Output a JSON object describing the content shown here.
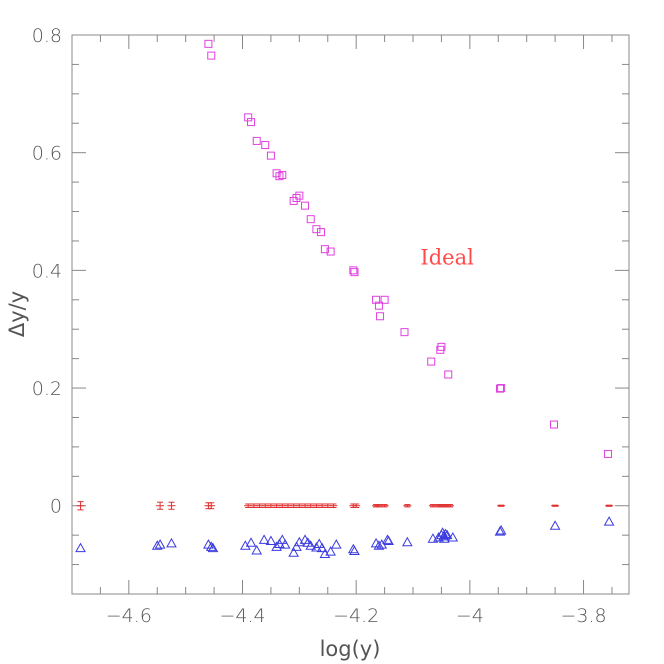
{
  "chart_data": {
    "type": "scatter",
    "title": "",
    "xlabel": "log(y)",
    "ylabel": "Δy/y",
    "xlim": [
      -4.7,
      -3.72
    ],
    "ylim": [
      -0.15,
      0.8
    ],
    "x_ticks": [
      -4.6,
      -4.4,
      -4.2,
      -4,
      -3.8
    ],
    "x_tick_labels": [
      "−4.6",
      "−4.4",
      "−4.2",
      "−4",
      "−3.8"
    ],
    "y_ticks": [
      0,
      0.2,
      0.4,
      0.6,
      0.8
    ],
    "y_tick_labels": [
      "0",
      "0.2",
      "0.4",
      "0.6",
      "0.8"
    ],
    "grid": false,
    "annotations": [
      {
        "text": "Ideal",
        "x": -4.04,
        "y": 0.41,
        "color": "#ff4a4a"
      }
    ],
    "series": [
      {
        "marker": "square",
        "color": "#e040e0",
        "points": [
          [
            -4.46,
            0.785
          ],
          [
            -4.455,
            0.765
          ],
          [
            -4.39,
            0.66
          ],
          [
            -4.385,
            0.652
          ],
          [
            -4.375,
            0.62
          ],
          [
            -4.36,
            0.613
          ],
          [
            -4.35,
            0.595
          ],
          [
            -4.34,
            0.565
          ],
          [
            -4.335,
            0.56
          ],
          [
            -4.33,
            0.562
          ],
          [
            -4.31,
            0.518
          ],
          [
            -4.305,
            0.523
          ],
          [
            -4.3,
            0.527
          ],
          [
            -4.29,
            0.51
          ],
          [
            -4.28,
            0.487
          ],
          [
            -4.27,
            0.47
          ],
          [
            -4.262,
            0.465
          ],
          [
            -4.255,
            0.436
          ],
          [
            -4.245,
            0.432
          ],
          [
            -4.205,
            0.4
          ],
          [
            -4.203,
            0.397
          ],
          [
            -4.165,
            0.35
          ],
          [
            -4.16,
            0.34
          ],
          [
            -4.158,
            0.322
          ],
          [
            -4.15,
            0.35
          ],
          [
            -4.115,
            0.295
          ],
          [
            -4.068,
            0.245
          ],
          [
            -4.052,
            0.265
          ],
          [
            -4.05,
            0.27
          ],
          [
            -4.038,
            0.223
          ],
          [
            -3.947,
            0.199
          ],
          [
            -3.945,
            0.2
          ],
          [
            -3.852,
            0.138
          ],
          [
            -3.757,
            0.088
          ]
        ]
      },
      {
        "marker": "errorbar",
        "color": "#e03030",
        "points": [
          [
            -4.685,
            0,
            0.007
          ],
          [
            -4.545,
            0,
            0.006
          ],
          [
            -4.525,
            0,
            0.006
          ],
          [
            -4.46,
            0,
            0.005
          ],
          [
            -4.455,
            0,
            0.005
          ],
          [
            -4.39,
            0,
            0.003
          ],
          [
            -4.38,
            0,
            0.003
          ],
          [
            -4.37,
            0,
            0.003
          ],
          [
            -4.36,
            0,
            0.003
          ],
          [
            -4.35,
            0,
            0.003
          ],
          [
            -4.34,
            0,
            0.003
          ],
          [
            -4.33,
            0,
            0.003
          ],
          [
            -4.32,
            0,
            0.003
          ],
          [
            -4.31,
            0,
            0.003
          ],
          [
            -4.3,
            0,
            0.003
          ],
          [
            -4.29,
            0,
            0.003
          ],
          [
            -4.28,
            0,
            0.003
          ],
          [
            -4.27,
            0,
            0.003
          ],
          [
            -4.26,
            0,
            0.003
          ],
          [
            -4.25,
            0,
            0.003
          ],
          [
            -4.24,
            0,
            0.003
          ],
          [
            -4.205,
            0,
            0.003
          ],
          [
            -4.2,
            0,
            0.003
          ],
          [
            -4.165,
            0,
            0.002
          ],
          [
            -4.16,
            0,
            0.002
          ],
          [
            -4.15,
            0,
            0.002
          ],
          [
            -4.11,
            0,
            0.002
          ],
          [
            -4.065,
            0,
            0.002
          ],
          [
            -4.055,
            0,
            0.002
          ],
          [
            -4.05,
            0,
            0.002
          ],
          [
            -4.045,
            0,
            0.002
          ],
          [
            -4.04,
            0,
            0.002
          ],
          [
            -4.035,
            0,
            0.002
          ],
          [
            -3.945,
            0,
            0.001
          ],
          [
            -3.85,
            0,
            0.001
          ],
          [
            -3.755,
            0,
            0.001
          ]
        ]
      },
      {
        "marker": "triangle",
        "color": "#3a3ae0",
        "points": [
          [
            -4.685,
            -0.072
          ],
          [
            -4.55,
            -0.068
          ],
          [
            -4.545,
            -0.066
          ],
          [
            -4.525,
            -0.064
          ],
          [
            -4.46,
            -0.066
          ],
          [
            -4.455,
            -0.07
          ],
          [
            -4.452,
            -0.072
          ],
          [
            -4.395,
            -0.068
          ],
          [
            -4.385,
            -0.063
          ],
          [
            -4.375,
            -0.076
          ],
          [
            -4.362,
            -0.058
          ],
          [
            -4.35,
            -0.06
          ],
          [
            -4.34,
            -0.07
          ],
          [
            -4.335,
            -0.065
          ],
          [
            -4.33,
            -0.058
          ],
          [
            -4.325,
            -0.066
          ],
          [
            -4.31,
            -0.08
          ],
          [
            -4.305,
            -0.07
          ],
          [
            -4.3,
            -0.062
          ],
          [
            -4.29,
            -0.058
          ],
          [
            -4.285,
            -0.063
          ],
          [
            -4.28,
            -0.068
          ],
          [
            -4.27,
            -0.071
          ],
          [
            -4.265,
            -0.065
          ],
          [
            -4.26,
            -0.072
          ],
          [
            -4.255,
            -0.082
          ],
          [
            -4.245,
            -0.078
          ],
          [
            -4.235,
            -0.066
          ],
          [
            -4.205,
            -0.074
          ],
          [
            -4.203,
            -0.077
          ],
          [
            -4.165,
            -0.064
          ],
          [
            -4.16,
            -0.068
          ],
          [
            -4.155,
            -0.066
          ],
          [
            -4.145,
            -0.058
          ],
          [
            -4.143,
            -0.06
          ],
          [
            -4.11,
            -0.062
          ],
          [
            -4.065,
            -0.056
          ],
          [
            -4.055,
            -0.054
          ],
          [
            -4.05,
            -0.05
          ],
          [
            -4.048,
            -0.046
          ],
          [
            -4.046,
            -0.052
          ],
          [
            -4.045,
            -0.056
          ],
          [
            -4.043,
            -0.048
          ],
          [
            -4.04,
            -0.05
          ],
          [
            -4.03,
            -0.054
          ],
          [
            -3.947,
            -0.044
          ],
          [
            -3.945,
            -0.042
          ],
          [
            -3.85,
            -0.034
          ],
          [
            -3.755,
            -0.027
          ]
        ]
      }
    ]
  }
}
